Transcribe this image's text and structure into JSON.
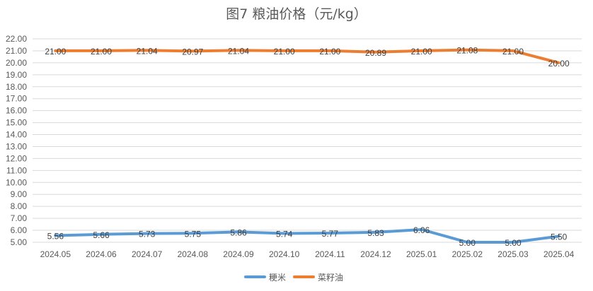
{
  "chart_data": {
    "type": "line",
    "title": "图7 粮油价格（元/kg）",
    "categories": [
      "2024.05",
      "2024.06",
      "2024.07",
      "2024.08",
      "2024.09",
      "2024.10",
      "2024.11",
      "2024.12",
      "2025.01",
      "2025.02",
      "2025.03",
      "2025.04"
    ],
    "series": [
      {
        "name": "粳米",
        "color": "#5b9bd5",
        "values": [
          5.56,
          5.66,
          5.73,
          5.75,
          5.86,
          5.74,
          5.77,
          5.83,
          6.06,
          5.0,
          5.0,
          5.5
        ],
        "labels": [
          "5.56",
          "5.66",
          "5.73",
          "5.75",
          "5.86",
          "5.74",
          "5.77",
          "5.83",
          "6.06",
          "5.00",
          "5.00",
          "5.50"
        ]
      },
      {
        "name": "菜籽油",
        "color": "#ed7d31",
        "values": [
          21.0,
          21.0,
          21.04,
          20.97,
          21.04,
          21.0,
          21.0,
          20.89,
          21.0,
          21.08,
          21.0,
          20.0
        ],
        "labels": [
          "21.00",
          "21.00",
          "21.04",
          "20.97",
          "21.04",
          "21.00",
          "21.00",
          "20.89",
          "21.00",
          "21.08",
          "21.00",
          "20.00"
        ]
      }
    ],
    "ylim": [
      5,
      22
    ],
    "yticks": [
      "5.00",
      "6.00",
      "7.00",
      "8.00",
      "9.00",
      "10.00",
      "11.00",
      "12.00",
      "13.00",
      "14.00",
      "15.00",
      "16.00",
      "17.00",
      "18.00",
      "19.00",
      "20.00",
      "21.00",
      "22.00"
    ],
    "grid": true,
    "legend_position": "bottom"
  }
}
